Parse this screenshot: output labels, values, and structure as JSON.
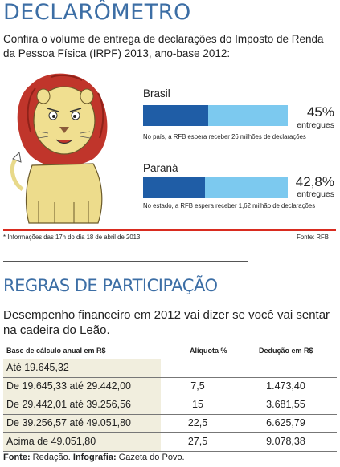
{
  "title": "DECLARÔMETRO",
  "subtitle": "Confira o volume de entrega de declarações do Imposto de Renda da Pessoa Física (IRPF) 2013, ano-base 2012:",
  "chart_data": {
    "type": "bar",
    "orientation": "horizontal",
    "categories": [
      "Brasil",
      "Paraná"
    ],
    "values": [
      45,
      42.8
    ],
    "value_labels": [
      "45%",
      "42,8%"
    ],
    "unit_label": "entregues",
    "notes": [
      "No país, a RFB espera receber 26 milhões de declarações",
      "No estado, a RFB espera receber 1,62 milhão de declarações"
    ],
    "ylim": [
      0,
      100
    ],
    "colors": {
      "filled": "#1f5da6",
      "remaining": "#7cc9ef"
    }
  },
  "footnote": "* Informações das 17h do dia 18 de abril de 2013.",
  "source_top": "Fonte: RFB",
  "section2": {
    "title": "REGRAS DE PARTICIPAÇÃO",
    "subtitle": "Desempenho financeiro em 2012 vai dizer se você vai sentar na cadeira do Leão.",
    "headers": [
      "Base de cálculo anual em R$",
      "Alíquota %",
      "Dedução em R$"
    ],
    "rows": [
      [
        "Até 19.645,32",
        "-",
        "-"
      ],
      [
        "De 19.645,33 até 29.442,00",
        "7,5",
        "1.473,40"
      ],
      [
        "De 29.442,01 até 39.256,56",
        "15",
        "3.681,55"
      ],
      [
        "De 39.256,57 até 49.051,80",
        "22,5",
        "6.625,79"
      ],
      [
        "Acima de 49.051,80",
        "27,5",
        "9.078,38"
      ]
    ]
  },
  "source_bottom": {
    "fonte_label": "Fonte:",
    "fonte_value": "Redação.",
    "info_label": "Infografia:",
    "info_value": "Gazeta do Povo."
  },
  "colors": {
    "title_blue": "#3c6ea5",
    "rule_red": "#d92b1f"
  }
}
